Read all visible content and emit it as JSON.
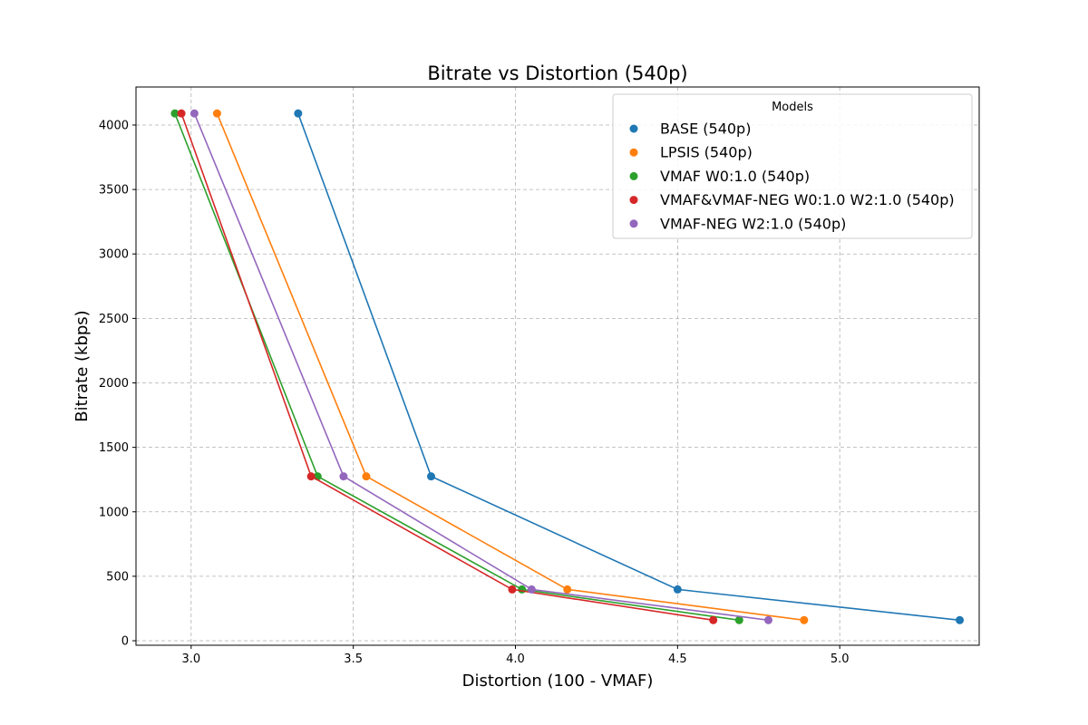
{
  "chart_data": {
    "type": "line",
    "title": "Bitrate vs Distortion (540p)",
    "xlabel": "Distortion (100 - VMAF)",
    "ylabel": "Bitrate (kbps)",
    "xlim": [
      2.83,
      5.43
    ],
    "ylim": [
      -35,
      4295
    ],
    "xticks": [
      3.0,
      3.5,
      4.0,
      4.5,
      5.0
    ],
    "xtick_labels": [
      "3.0",
      "3.5",
      "4.0",
      "4.5",
      "5.0"
    ],
    "yticks": [
      0,
      500,
      1000,
      1500,
      2000,
      2500,
      3000,
      3500,
      4000
    ],
    "ytick_labels": [
      "0",
      "500",
      "1000",
      "1500",
      "2000",
      "2500",
      "3000",
      "3500",
      "4000"
    ],
    "grid": true,
    "legend_title": "Models",
    "legend_position": "upper right",
    "series": [
      {
        "name": "BASE (540p)",
        "color": "#1f77b4",
        "x": [
          3.33,
          3.74,
          4.5,
          5.37
        ],
        "y": [
          4090,
          1275,
          398,
          160
        ]
      },
      {
        "name": "LPSIS (540p)",
        "color": "#ff7f0e",
        "x": [
          3.08,
          3.54,
          4.16,
          4.89
        ],
        "y": [
          4090,
          1275,
          398,
          160
        ]
      },
      {
        "name": "VMAF W0:1.0 (540p)",
        "color": "#2ca02c",
        "x": [
          2.95,
          3.39,
          4.02,
          4.69
        ],
        "y": [
          4090,
          1275,
          398,
          160
        ]
      },
      {
        "name": "VMAF&VMAF-NEG W0:1.0 W2:1.0 (540p)",
        "color": "#d62728",
        "x": [
          2.97,
          3.37,
          3.99,
          4.61
        ],
        "y": [
          4090,
          1275,
          398,
          160
        ]
      },
      {
        "name": "VMAF-NEG W2:1.0 (540p)",
        "color": "#9467bd",
        "x": [
          3.01,
          3.47,
          4.05,
          4.78
        ],
        "y": [
          4090,
          1275,
          398,
          160
        ]
      }
    ]
  }
}
